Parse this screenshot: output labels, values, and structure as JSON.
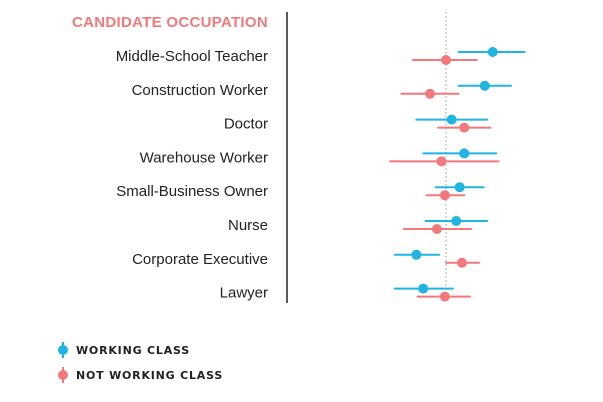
{
  "chart_data": {
    "type": "scatter",
    "title": "CANDIDATE OCCUPATION",
    "categories": [
      "Middle-School Teacher",
      "Construction Worker",
      "Doctor",
      "Warehouse Worker",
      "Small-Business Owner",
      "Nurse",
      "Corporate Executive",
      "Lawyer"
    ],
    "reference_x": 0,
    "xlim": [
      -1.0,
      1.4
    ],
    "series": [
      {
        "name": "WORKING CLASS",
        "color": "#1fb5e0",
        "values": [
          0.82,
          0.68,
          0.1,
          0.32,
          0.24,
          0.18,
          -0.52,
          -0.4
        ],
        "ci_low": [
          0.22,
          0.22,
          -0.52,
          -0.4,
          -0.18,
          -0.36,
          -0.9,
          -0.9
        ],
        "ci_high": [
          1.38,
          1.14,
          0.72,
          0.88,
          0.66,
          0.72,
          -0.12,
          0.12
        ]
      },
      {
        "name": "NOT WORKING CLASS",
        "color": "#f2787c",
        "values": [
          0.0,
          -0.28,
          0.32,
          -0.08,
          -0.02,
          -0.16,
          0.28,
          -0.02
        ],
        "ci_low": [
          -0.58,
          -0.78,
          -0.14,
          -0.98,
          -0.34,
          -0.74,
          0.0,
          -0.5
        ],
        "ci_high": [
          0.54,
          0.22,
          0.78,
          0.92,
          0.32,
          0.44,
          0.58,
          0.42
        ]
      }
    ],
    "legend": "bottom-left",
    "grid": false
  },
  "colors": {
    "title": "#f2787c",
    "axis_line": "#222222",
    "reference_line": "#999999"
  }
}
